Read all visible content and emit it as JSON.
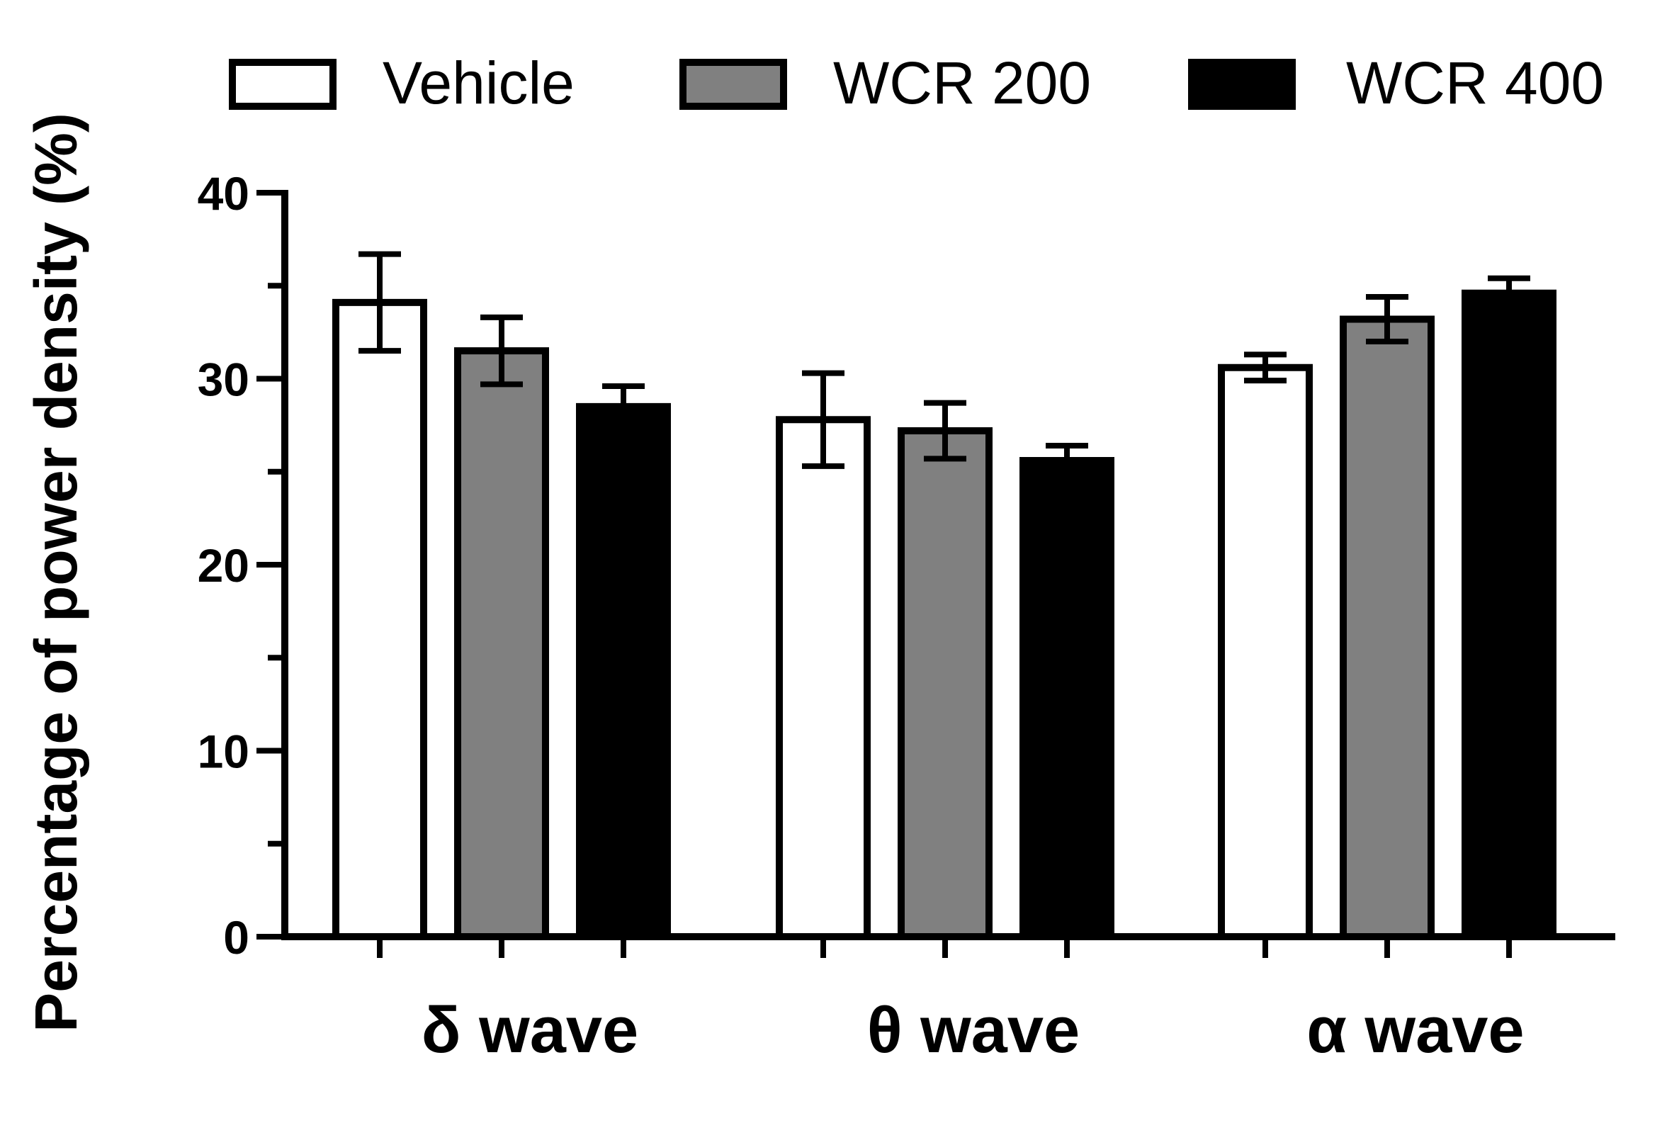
{
  "chart_data": {
    "type": "bar",
    "title": "",
    "xlabel": "",
    "ylabel": "Percentage of power density (%)",
    "ylim": [
      0,
      40
    ],
    "y_major_ticks": [
      0,
      10,
      20,
      30,
      40
    ],
    "y_minor_ticks": [
      5,
      15,
      25,
      35
    ],
    "grid": false,
    "legend_position": "top",
    "categories": [
      "δ wave",
      "θ wave",
      "α wave"
    ],
    "series": [
      {
        "name": "Vehicle",
        "color": "#ffffff",
        "values": [
          34.1,
          27.8,
          30.6
        ],
        "errors": [
          2.6,
          2.5,
          0.7
        ]
      },
      {
        "name": "WCR 200",
        "color": "#808080",
        "values": [
          31.5,
          27.2,
          33.2
        ],
        "errors": [
          1.8,
          1.5,
          1.2
        ]
      },
      {
        "name": "WCR 400",
        "color": "#000000",
        "values": [
          28.5,
          25.6,
          34.6
        ],
        "errors": [
          1.1,
          0.8,
          0.8
        ]
      }
    ]
  }
}
